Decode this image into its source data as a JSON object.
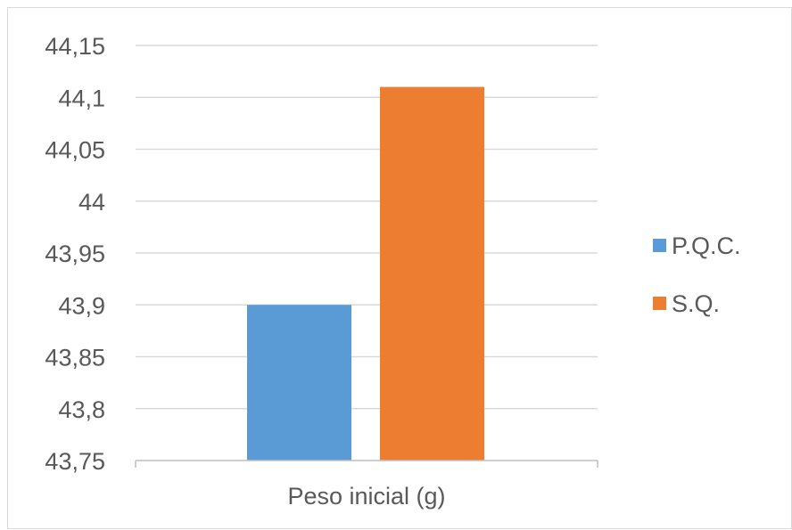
{
  "chart_data": {
    "type": "bar",
    "categories": [
      "Peso inicial (g)"
    ],
    "series": [
      {
        "name": "P.Q.C.",
        "values": [
          43.9
        ],
        "color": "#5b9bd5"
      },
      {
        "name": "S.Q.",
        "values": [
          44.11
        ],
        "color": "#ed7d31"
      }
    ],
    "ylim": [
      43.75,
      44.15
    ],
    "ytick_values": [
      43.75,
      43.8,
      43.85,
      43.9,
      43.95,
      44,
      44.05,
      44.1,
      44.15
    ],
    "ytick_labels": [
      "43,75",
      "43,8",
      "43,85",
      "43,9",
      "43,95",
      "44",
      "44,05",
      "44,1",
      "44,15"
    ],
    "title": "",
    "xlabel": "",
    "ylabel": "",
    "grid": true,
    "legend_position": "right",
    "colors": {
      "grid": "#d9d9d9",
      "axis": "#bfbfbf",
      "text": "#595959"
    }
  }
}
